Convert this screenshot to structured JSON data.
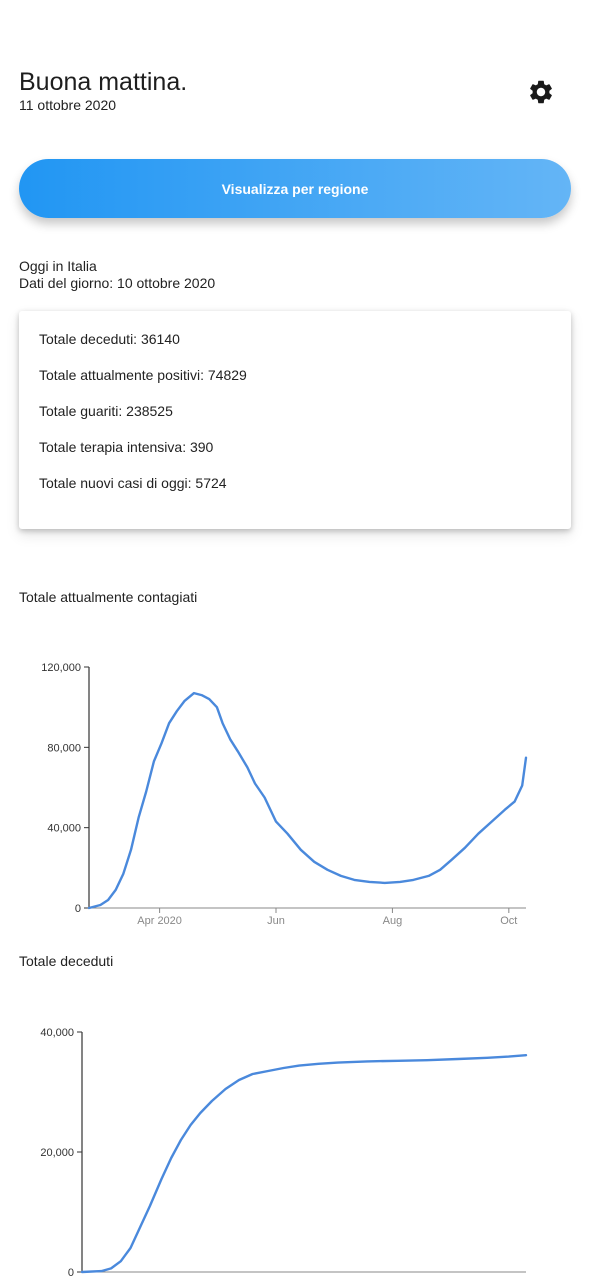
{
  "header": {
    "greeting": "Buona mattina.",
    "date": "11 ottobre 2020",
    "settings_icon": "gear-icon"
  },
  "region_button": {
    "label": "Visualizza per regione",
    "colors": [
      "#2196f3",
      "#64b5f6"
    ]
  },
  "today": {
    "title": "Oggi in Italia",
    "subtitle": "Dati del giorno: 10 ottobre 2020"
  },
  "stats": [
    "Totale deceduti: 36140",
    "Totale attualmente positivi: 74829",
    "Totale guariti: 238525",
    "Totale terapia intensiva: 390",
    "Totale nuovi casi di oggi: 5724"
  ],
  "chart_data": [
    {
      "type": "line",
      "title": "Totale attualmente contagiati",
      "xlabel": "",
      "ylabel": "",
      "ylim": [
        0,
        120000
      ],
      "yticks": [
        0,
        40000,
        80000,
        120000
      ],
      "ytick_labels": [
        "0",
        "40,000",
        "80,000",
        "120,000"
      ],
      "xticks": [
        "2020-04-01",
        "2020-06-01",
        "2020-08-01",
        "2020-10-01"
      ],
      "xtick_labels": [
        "Apr 2020",
        "Jun",
        "Aug",
        "Oct"
      ],
      "xlim": [
        "2020-02-24",
        "2020-10-10"
      ],
      "grid": false,
      "color": "#4a89dc",
      "series": [
        {
          "x": [
            "2020-02-24",
            "2020-03-01",
            "2020-03-05",
            "2020-03-09",
            "2020-03-13",
            "2020-03-17",
            "2020-03-21",
            "2020-03-25",
            "2020-03-29",
            "2020-04-02",
            "2020-04-06",
            "2020-04-10",
            "2020-04-14",
            "2020-04-19",
            "2020-04-23",
            "2020-04-27",
            "2020-05-01",
            "2020-05-04",
            "2020-05-08",
            "2020-05-12",
            "2020-05-17",
            "2020-05-21",
            "2020-05-26",
            "2020-06-01",
            "2020-06-07",
            "2020-06-14",
            "2020-06-21",
            "2020-06-28",
            "2020-07-05",
            "2020-07-12",
            "2020-07-20",
            "2020-07-28",
            "2020-08-05",
            "2020-08-12",
            "2020-08-20",
            "2020-08-26",
            "2020-09-01",
            "2020-09-08",
            "2020-09-15",
            "2020-09-22",
            "2020-09-29",
            "2020-10-04",
            "2020-10-08",
            "2020-10-10"
          ],
          "y": [
            0,
            1500,
            4000,
            9000,
            17000,
            29000,
            45000,
            58000,
            73000,
            82000,
            92000,
            98000,
            103000,
            107000,
            106000,
            104000,
            100000,
            92000,
            84000,
            78000,
            70000,
            62000,
            55000,
            43000,
            37000,
            29000,
            23000,
            19000,
            16000,
            14000,
            13000,
            12500,
            13000,
            14000,
            16000,
            19000,
            24000,
            30000,
            37000,
            43000,
            49000,
            53000,
            61000,
            74829
          ]
        }
      ]
    },
    {
      "type": "line",
      "title": "Totale deceduti",
      "xlabel": "",
      "ylabel": "",
      "ylim": [
        0,
        40000
      ],
      "yticks": [
        0,
        20000,
        40000
      ],
      "ytick_labels": [
        "0",
        "20,000",
        "40,000"
      ],
      "xlim": [
        "2020-02-24",
        "2020-10-10"
      ],
      "grid": false,
      "color": "#4a89dc",
      "series": [
        {
          "x": [
            "2020-02-24",
            "2020-03-05",
            "2020-03-10",
            "2020-03-15",
            "2020-03-20",
            "2020-03-25",
            "2020-03-30",
            "2020-04-05",
            "2020-04-10",
            "2020-04-15",
            "2020-04-20",
            "2020-04-25",
            "2020-05-01",
            "2020-05-08",
            "2020-05-15",
            "2020-05-22",
            "2020-05-30",
            "2020-06-07",
            "2020-06-15",
            "2020-06-25",
            "2020-07-05",
            "2020-07-20",
            "2020-08-05",
            "2020-08-20",
            "2020-09-05",
            "2020-09-20",
            "2020-10-01",
            "2020-10-10"
          ],
          "y": [
            0,
            150,
            600,
            1800,
            4000,
            7500,
            11000,
            15500,
            19000,
            22000,
            24500,
            26500,
            28500,
            30500,
            32000,
            33000,
            33500,
            34000,
            34400,
            34700,
            34900,
            35100,
            35200,
            35300,
            35500,
            35700,
            35900,
            36140
          ]
        }
      ]
    }
  ]
}
